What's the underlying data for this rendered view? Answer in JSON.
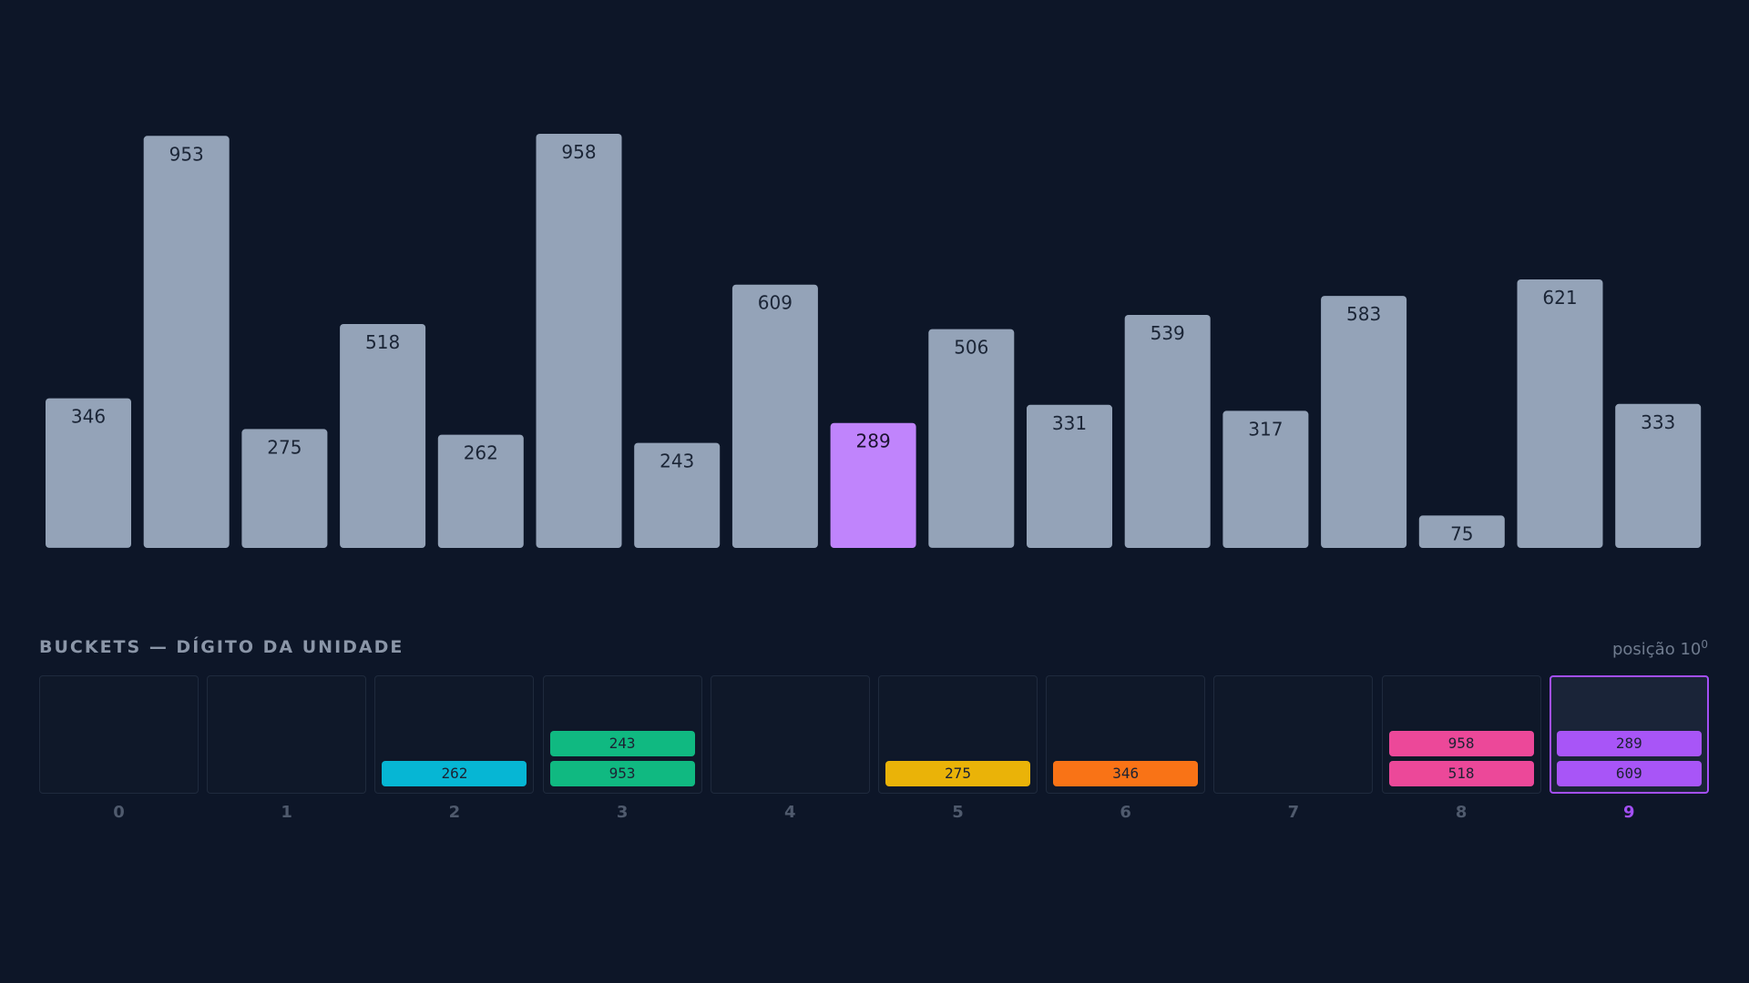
{
  "chart_data": {
    "type": "bar",
    "values": [
      346,
      953,
      275,
      518,
      262,
      958,
      243,
      609,
      289,
      506,
      331,
      539,
      317,
      583,
      75,
      621,
      333
    ],
    "highlight_index": 8,
    "bar_color": "#94a3b8",
    "highlight_color": "#c084fc",
    "ylim": [
      0,
      1000
    ]
  },
  "buckets": {
    "title": "BUCKETS — DÍGITO DA UNIDADE",
    "position_label": "posição 10",
    "position_exponent": "0",
    "active_index": 9,
    "items": [
      {
        "index": "0",
        "values": [],
        "color": ""
      },
      {
        "index": "1",
        "values": [],
        "color": ""
      },
      {
        "index": "2",
        "values": [
          "262"
        ],
        "color": "#06b6d4"
      },
      {
        "index": "3",
        "values": [
          "953",
          "243"
        ],
        "color": "#10b981"
      },
      {
        "index": "4",
        "values": [],
        "color": ""
      },
      {
        "index": "5",
        "values": [
          "275"
        ],
        "color": "#eab308"
      },
      {
        "index": "6",
        "values": [
          "346"
        ],
        "color": "#f97316"
      },
      {
        "index": "7",
        "values": [],
        "color": ""
      },
      {
        "index": "8",
        "values": [
          "518",
          "958"
        ],
        "color": "#ec4899"
      },
      {
        "index": "9",
        "values": [
          "609",
          "289"
        ],
        "color": "#a855f7"
      }
    ]
  }
}
